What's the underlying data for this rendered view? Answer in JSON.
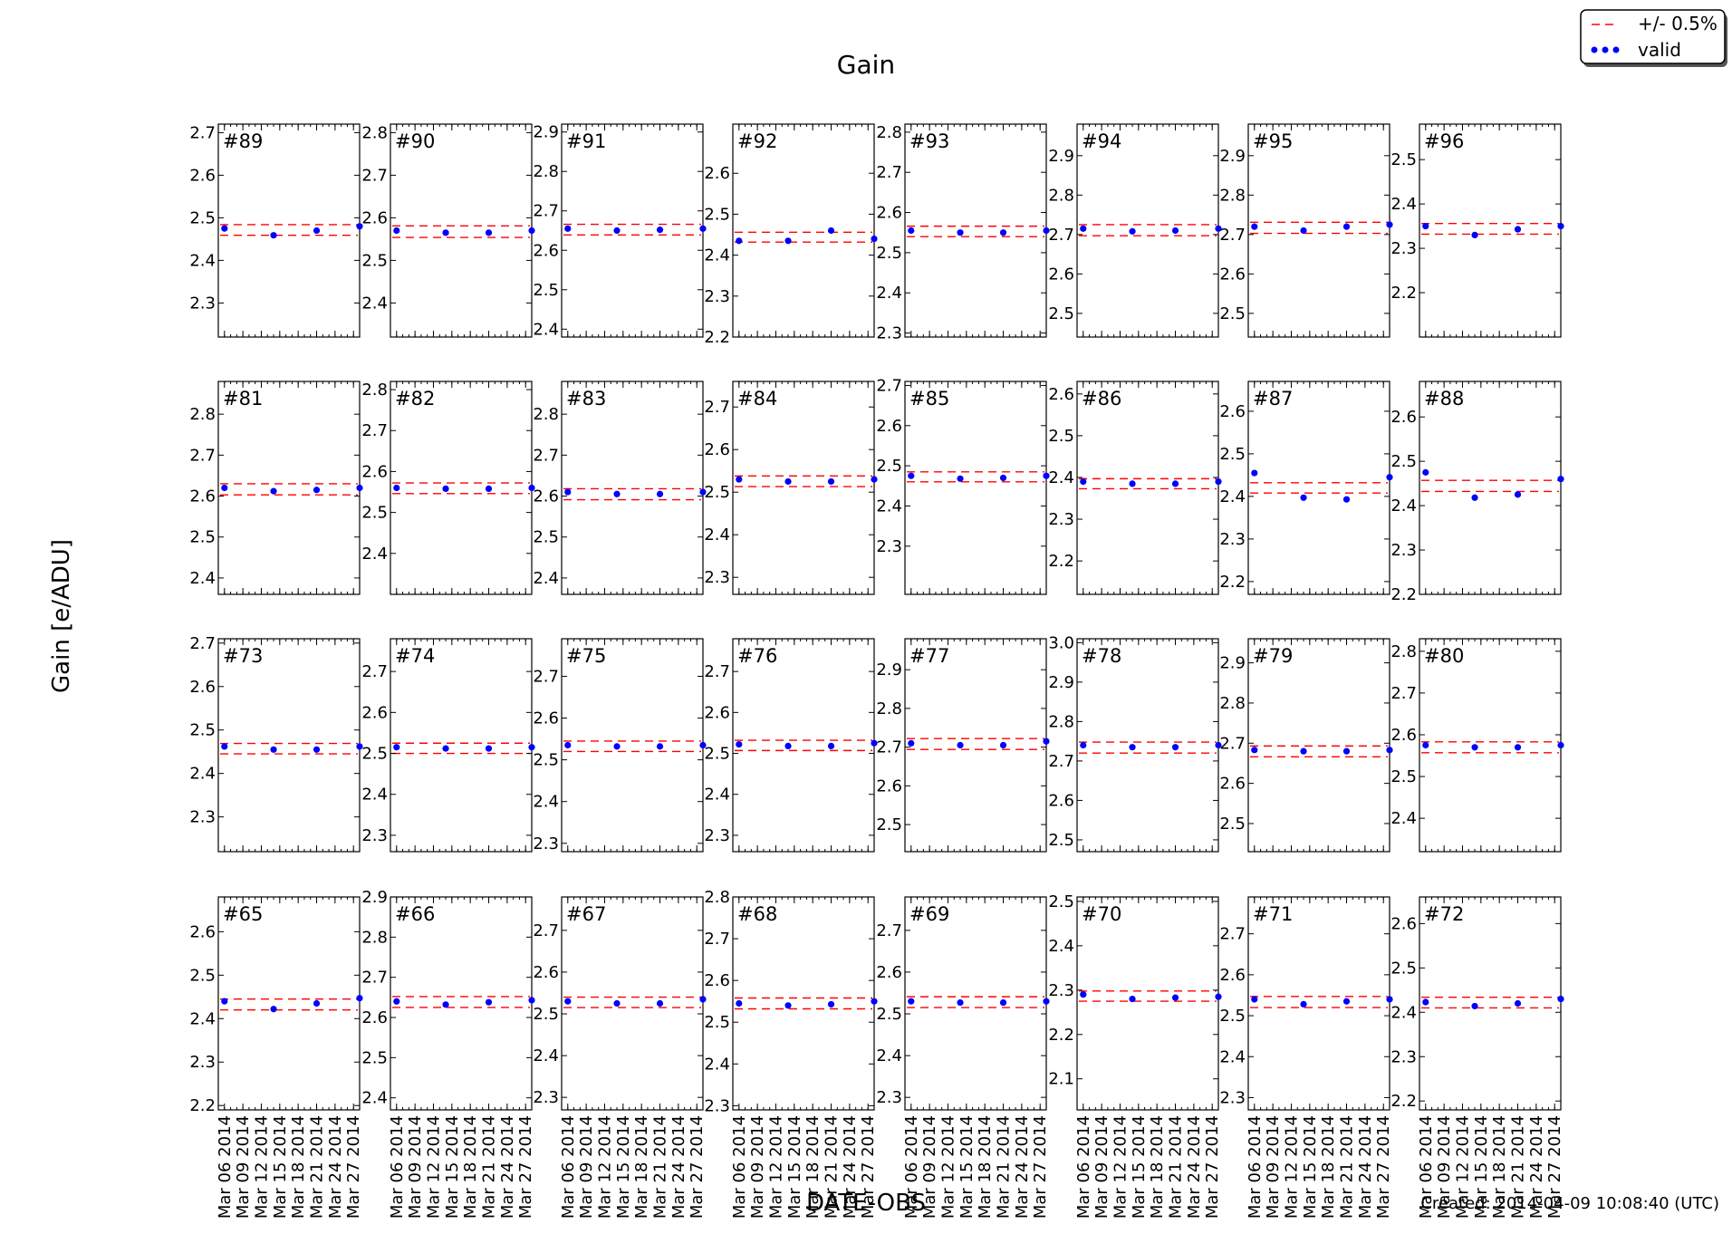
{
  "figure": {
    "title": "Gain",
    "ylabel": "Gain [e/ADU]",
    "xlabel": "DATE-OBS",
    "created": "Created: 2014-04-09 10:08:40 (UTC)"
  },
  "legend": {
    "placement": "top-right",
    "items": [
      {
        "label": "+/- 0.5%",
        "style": "dashed",
        "color": "#ff0000"
      },
      {
        "label": "valid",
        "style": "points",
        "color": "#0000ff"
      }
    ]
  },
  "colors": {
    "band": "#ff0000",
    "points": "#0000ff",
    "axes": "#000000"
  },
  "chart_data": {
    "type": "scatter",
    "x": [
      "2014-03-06",
      "2014-03-14",
      "2014-03-21",
      "2014-03-28"
    ],
    "x_ticks": [
      "Mar 06 2014",
      "Mar 09 2014",
      "Mar 12 2014",
      "Mar 15 2014",
      "Mar 18 2014",
      "Mar 21 2014",
      "Mar 24 2014",
      "Mar 27 2014"
    ],
    "xlim": [
      "2014-03-05",
      "2014-03-28"
    ],
    "band": "+/- 0.5%",
    "panels": [
      {
        "title": "#89",
        "ylim": [
          2.22,
          2.72
        ],
        "yticks": [
          "2.3",
          "2.4",
          "2.5",
          "2.6",
          "2.7"
        ],
        "values": [
          2.475,
          2.459,
          2.47,
          2.48
        ],
        "band": [
          2.459,
          2.484
        ]
      },
      {
        "title": "#90",
        "ylim": [
          2.32,
          2.82
        ],
        "yticks": [
          "2.4",
          "2.5",
          "2.6",
          "2.7",
          "2.8"
        ],
        "values": [
          2.57,
          2.565,
          2.565,
          2.57
        ],
        "band": [
          2.554,
          2.581
        ]
      },
      {
        "title": "#91",
        "ylim": [
          2.38,
          2.92
        ],
        "yticks": [
          "2.4",
          "2.5",
          "2.6",
          "2.7",
          "2.8",
          "2.9"
        ],
        "values": [
          2.655,
          2.65,
          2.652,
          2.655
        ],
        "band": [
          2.639,
          2.666
        ]
      },
      {
        "title": "#92",
        "ylim": [
          2.2,
          2.72
        ],
        "yticks": [
          "2.2",
          "2.3",
          "2.4",
          "2.5",
          "2.6"
        ],
        "values": [
          2.435,
          2.435,
          2.46,
          2.44
        ],
        "band": [
          2.432,
          2.456
        ]
      },
      {
        "title": "#93",
        "ylim": [
          2.29,
          2.82
        ],
        "yticks": [
          "2.3",
          "2.4",
          "2.5",
          "2.6",
          "2.7",
          "2.8"
        ],
        "values": [
          2.555,
          2.55,
          2.55,
          2.555
        ],
        "band": [
          2.54,
          2.566
        ]
      },
      {
        "title": "#94",
        "ylim": [
          2.44,
          2.98
        ],
        "yticks": [
          "2.5",
          "2.6",
          "2.7",
          "2.8",
          "2.9"
        ],
        "values": [
          2.715,
          2.708,
          2.71,
          2.715
        ],
        "band": [
          2.697,
          2.725
        ]
      },
      {
        "title": "#95",
        "ylim": [
          2.44,
          2.98
        ],
        "yticks": [
          "2.5",
          "2.6",
          "2.7",
          "2.8",
          "2.9"
        ],
        "values": [
          2.72,
          2.71,
          2.72,
          2.725
        ],
        "band": [
          2.703,
          2.731
        ]
      },
      {
        "title": "#96",
        "ylim": [
          2.1,
          2.58
        ],
        "yticks": [
          "2.2",
          "2.3",
          "2.4",
          "2.5"
        ],
        "values": [
          2.35,
          2.33,
          2.343,
          2.35
        ],
        "band": [
          2.332,
          2.356
        ]
      },
      {
        "title": "#81",
        "ylim": [
          2.36,
          2.88
        ],
        "yticks": [
          "2.4",
          "2.5",
          "2.6",
          "2.7",
          "2.8"
        ],
        "values": [
          2.62,
          2.612,
          2.615,
          2.62
        ],
        "band": [
          2.603,
          2.63
        ]
      },
      {
        "title": "#82",
        "ylim": [
          2.3,
          2.82
        ],
        "yticks": [
          "2.4",
          "2.5",
          "2.6",
          "2.7",
          "2.8"
        ],
        "values": [
          2.56,
          2.558,
          2.558,
          2.56
        ],
        "band": [
          2.546,
          2.572
        ]
      },
      {
        "title": "#83",
        "ylim": [
          2.36,
          2.88
        ],
        "yticks": [
          "2.4",
          "2.5",
          "2.6",
          "2.7",
          "2.8"
        ],
        "values": [
          2.61,
          2.605,
          2.605,
          2.61
        ],
        "band": [
          2.591,
          2.618
        ]
      },
      {
        "title": "#84",
        "ylim": [
          2.26,
          2.76
        ],
        "yticks": [
          "2.3",
          "2.4",
          "2.5",
          "2.6",
          "2.7"
        ],
        "values": [
          2.53,
          2.525,
          2.525,
          2.53
        ],
        "band": [
          2.513,
          2.538
        ]
      },
      {
        "title": "#85",
        "ylim": [
          2.18,
          2.71
        ],
        "yticks": [
          "2.3",
          "2.4",
          "2.5",
          "2.6",
          "2.7"
        ],
        "values": [
          2.475,
          2.468,
          2.47,
          2.475
        ],
        "band": [
          2.46,
          2.485
        ]
      },
      {
        "title": "#86",
        "ylim": [
          2.12,
          2.63
        ],
        "yticks": [
          "2.2",
          "2.3",
          "2.4",
          "2.5",
          "2.6"
        ],
        "values": [
          2.39,
          2.385,
          2.385,
          2.39
        ],
        "band": [
          2.373,
          2.397
        ]
      },
      {
        "title": "#87",
        "ylim": [
          2.17,
          2.67
        ],
        "yticks": [
          "2.2",
          "2.3",
          "2.4",
          "2.5",
          "2.6"
        ],
        "values": [
          2.455,
          2.397,
          2.393,
          2.445
        ],
        "band": [
          2.408,
          2.432
        ]
      },
      {
        "title": "#88",
        "ylim": [
          2.2,
          2.68
        ],
        "yticks": [
          "2.2",
          "2.3",
          "2.4",
          "2.5",
          "2.6"
        ],
        "values": [
          2.475,
          2.418,
          2.425,
          2.46
        ],
        "band": [
          2.432,
          2.457
        ]
      },
      {
        "title": "#73",
        "ylim": [
          2.22,
          2.71
        ],
        "yticks": [
          "2.3",
          "2.4",
          "2.5",
          "2.6",
          "2.7"
        ],
        "values": [
          2.462,
          2.455,
          2.455,
          2.462
        ],
        "band": [
          2.445,
          2.469
        ]
      },
      {
        "title": "#74",
        "ylim": [
          2.26,
          2.78
        ],
        "yticks": [
          "2.3",
          "2.4",
          "2.5",
          "2.6",
          "2.7"
        ],
        "values": [
          2.515,
          2.512,
          2.512,
          2.515
        ],
        "band": [
          2.5,
          2.525
        ]
      },
      {
        "title": "#75",
        "ylim": [
          2.28,
          2.79
        ],
        "yticks": [
          "2.3",
          "2.4",
          "2.5",
          "2.6",
          "2.7"
        ],
        "values": [
          2.535,
          2.532,
          2.532,
          2.535
        ],
        "band": [
          2.52,
          2.545
        ]
      },
      {
        "title": "#76",
        "ylim": [
          2.26,
          2.78
        ],
        "yticks": [
          "2.3",
          "2.4",
          "2.5",
          "2.6",
          "2.7"
        ],
        "values": [
          2.522,
          2.518,
          2.518,
          2.525
        ],
        "band": [
          2.507,
          2.532
        ]
      },
      {
        "title": "#77",
        "ylim": [
          2.43,
          2.98
        ],
        "yticks": [
          "2.5",
          "2.6",
          "2.7",
          "2.8",
          "2.9"
        ],
        "values": [
          2.71,
          2.705,
          2.705,
          2.715
        ],
        "band": [
          2.694,
          2.722
        ]
      },
      {
        "title": "#78",
        "ylim": [
          2.47,
          3.01
        ],
        "yticks": [
          "2.5",
          "2.6",
          "2.7",
          "2.8",
          "2.9",
          "3.0"
        ],
        "values": [
          2.74,
          2.735,
          2.735,
          2.74
        ],
        "band": [
          2.72,
          2.748
        ]
      },
      {
        "title": "#79",
        "ylim": [
          2.43,
          2.96
        ],
        "yticks": [
          "2.5",
          "2.6",
          "2.7",
          "2.8",
          "2.9"
        ],
        "values": [
          2.683,
          2.68,
          2.68,
          2.683
        ],
        "band": [
          2.666,
          2.693
        ]
      },
      {
        "title": "#80",
        "ylim": [
          2.32,
          2.83
        ],
        "yticks": [
          "2.4",
          "2.5",
          "2.6",
          "2.7",
          "2.8"
        ],
        "values": [
          2.575,
          2.57,
          2.57,
          2.575
        ],
        "band": [
          2.557,
          2.583
        ]
      },
      {
        "title": "#65",
        "ylim": [
          2.19,
          2.68
        ],
        "yticks": [
          "2.2",
          "2.3",
          "2.4",
          "2.5",
          "2.6"
        ],
        "values": [
          2.44,
          2.422,
          2.435,
          2.447
        ],
        "band": [
          2.42,
          2.445
        ]
      },
      {
        "title": "#66",
        "ylim": [
          2.37,
          2.9
        ],
        "yticks": [
          "2.4",
          "2.5",
          "2.6",
          "2.7",
          "2.8",
          "2.9"
        ],
        "values": [
          2.64,
          2.632,
          2.638,
          2.643
        ],
        "band": [
          2.625,
          2.652
        ]
      },
      {
        "title": "#67",
        "ylim": [
          2.27,
          2.78
        ],
        "yticks": [
          "2.3",
          "2.4",
          "2.5",
          "2.6",
          "2.7"
        ],
        "values": [
          2.53,
          2.525,
          2.525,
          2.535
        ],
        "band": [
          2.515,
          2.54
        ]
      },
      {
        "title": "#68",
        "ylim": [
          2.29,
          2.8
        ],
        "yticks": [
          "2.3",
          "2.4",
          "2.5",
          "2.6",
          "2.7",
          "2.8"
        ],
        "values": [
          2.545,
          2.54,
          2.543,
          2.55
        ],
        "band": [
          2.532,
          2.558
        ]
      },
      {
        "title": "#69",
        "ylim": [
          2.27,
          2.78
        ],
        "yticks": [
          "2.3",
          "2.4",
          "2.5",
          "2.6",
          "2.7"
        ],
        "values": [
          2.53,
          2.527,
          2.527,
          2.53
        ],
        "band": [
          2.515,
          2.541
        ]
      },
      {
        "title": "#70",
        "ylim": [
          2.03,
          2.51
        ],
        "yticks": [
          "2.1",
          "2.2",
          "2.3",
          "2.4",
          "2.5"
        ],
        "values": [
          2.29,
          2.28,
          2.283,
          2.285
        ],
        "band": [
          2.275,
          2.298
        ]
      },
      {
        "title": "#71",
        "ylim": [
          2.27,
          2.79
        ],
        "yticks": [
          "2.3",
          "2.4",
          "2.5",
          "2.6",
          "2.7"
        ],
        "values": [
          2.54,
          2.528,
          2.535,
          2.54
        ],
        "band": [
          2.52,
          2.547
        ]
      },
      {
        "title": "#72",
        "ylim": [
          2.18,
          2.66
        ],
        "yticks": [
          "2.2",
          "2.3",
          "2.4",
          "2.5",
          "2.6"
        ],
        "values": [
          2.423,
          2.414,
          2.42,
          2.43
        ],
        "band": [
          2.41,
          2.434
        ]
      }
    ]
  }
}
